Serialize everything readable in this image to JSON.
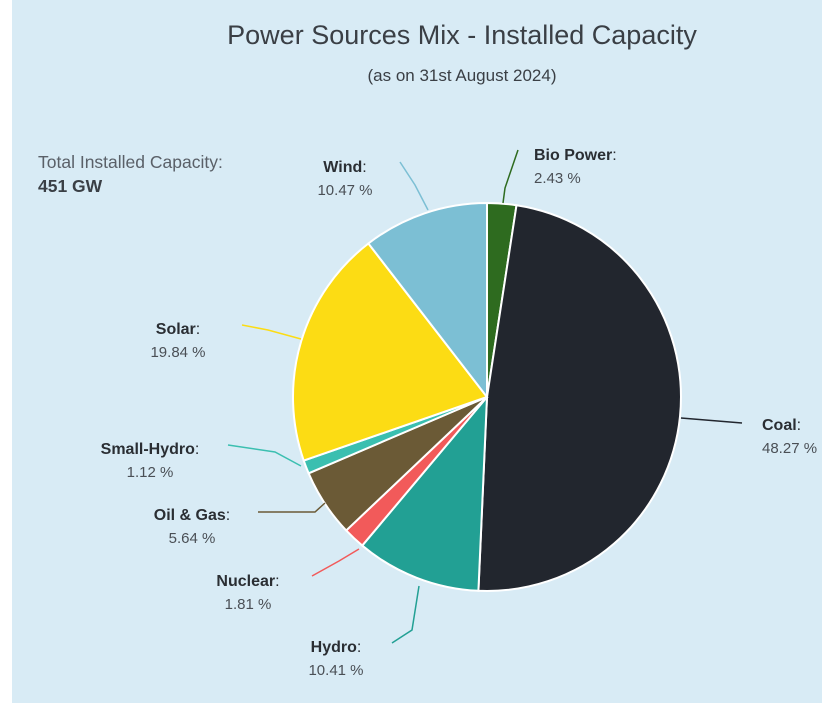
{
  "chart_data": {
    "type": "pie",
    "title": "Power Sources Mix - Installed Capacity",
    "subtitle": "(as on 31st August 2024)",
    "total_label": "Total Installed Capacity:",
    "total_value": "451 GW",
    "slices": [
      {
        "name": "Bio Power",
        "value": 2.43,
        "value_label": "2.43 %",
        "color": "#2e6b1f"
      },
      {
        "name": "Coal",
        "value": 48.27,
        "value_label": "48.27 %",
        "color": "#22262e"
      },
      {
        "name": "Hydro",
        "value": 10.41,
        "value_label": "10.41 %",
        "color": "#22a094"
      },
      {
        "name": "Nuclear",
        "value": 1.81,
        "value_label": "1.81 %",
        "color": "#f25a5a"
      },
      {
        "name": "Oil & Gas",
        "value": 5.64,
        "value_label": "5.64 %",
        "color": "#6b5a36"
      },
      {
        "name": "Small-Hydro",
        "value": 1.12,
        "value_label": "1.12 %",
        "color": "#3bbfb0"
      },
      {
        "name": "Solar",
        "value": 19.84,
        "value_label": "19.84 %",
        "color": "#fcdc14"
      },
      {
        "name": "Wind",
        "value": 10.47,
        "value_label": "10.47 %",
        "color": "#7cbfd4"
      }
    ]
  }
}
